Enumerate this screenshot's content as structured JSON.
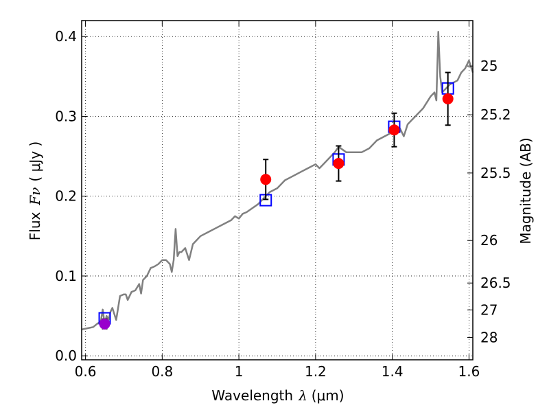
{
  "chart_data": {
    "type": "scatter",
    "xlabel": "Wavelength",
    "xlabel_symbol": "λ",
    "xlabel_unit": "(μm)",
    "ylabel": "Flux",
    "ylabel_symbol": "Fν",
    "ylabel_unit": "( μJy )",
    "right_ylabel": "Magnitude (AB)",
    "xlim": [
      0.59,
      1.61
    ],
    "ylim": [
      -0.005,
      0.42
    ],
    "grid": true,
    "grid_style": "dotted",
    "x_ticks": [
      0.6,
      0.8,
      1.0,
      1.2,
      1.4,
      1.6
    ],
    "x_tick_labels": [
      "0.6",
      "0.8",
      "1",
      "1.2",
      "1.4",
      "1.6"
    ],
    "y_ticks": [
      0.0,
      0.1,
      0.2,
      0.3,
      0.4
    ],
    "y_tick_labels": [
      "0.0",
      "0.1",
      "0.2",
      "0.3",
      "0.4"
    ],
    "right_ticks": [
      {
        "label": "25",
        "mag": 25
      },
      {
        "label": "25.2",
        "mag": 25.2
      },
      {
        "label": "25.5",
        "mag": 25.5
      },
      {
        "label": "26",
        "mag": 26
      },
      {
        "label": "26.5",
        "mag": 26.5
      },
      {
        "label": "27",
        "mag": 27
      },
      {
        "label": "28",
        "mag": 28
      }
    ],
    "series": [
      {
        "type": "line",
        "color": "#808080",
        "x": [
          0.59,
          0.61,
          0.62,
          0.63,
          0.64,
          0.645,
          0.65,
          0.655,
          0.66,
          0.665,
          0.67,
          0.68,
          0.69,
          0.7,
          0.705,
          0.71,
          0.72,
          0.73,
          0.74,
          0.745,
          0.75,
          0.76,
          0.77,
          0.78,
          0.79,
          0.8,
          0.81,
          0.82,
          0.825,
          0.83,
          0.835,
          0.84,
          0.845,
          0.85,
          0.86,
          0.87,
          0.88,
          0.9,
          0.92,
          0.94,
          0.96,
          0.98,
          0.99,
          1.0,
          1.01,
          1.02,
          1.05,
          1.07,
          1.08,
          1.1,
          1.12,
          1.14,
          1.16,
          1.18,
          1.2,
          1.21,
          1.22,
          1.24,
          1.25,
          1.26,
          1.28,
          1.3,
          1.32,
          1.34,
          1.36,
          1.38,
          1.4,
          1.42,
          1.43,
          1.44,
          1.45,
          1.46,
          1.48,
          1.5,
          1.51,
          1.515,
          1.52,
          1.525,
          1.53,
          1.55,
          1.57,
          1.58,
          1.59,
          1.6,
          1.61
        ],
        "y": [
          0.033,
          0.035,
          0.036,
          0.04,
          0.043,
          0.058,
          0.04,
          0.05,
          0.045,
          0.055,
          0.06,
          0.045,
          0.075,
          0.077,
          0.077,
          0.07,
          0.08,
          0.082,
          0.09,
          0.078,
          0.095,
          0.1,
          0.11,
          0.112,
          0.115,
          0.12,
          0.12,
          0.115,
          0.105,
          0.12,
          0.159,
          0.125,
          0.13,
          0.13,
          0.135,
          0.12,
          0.14,
          0.15,
          0.155,
          0.16,
          0.165,
          0.17,
          0.175,
          0.172,
          0.178,
          0.18,
          0.19,
          0.2,
          0.205,
          0.21,
          0.22,
          0.225,
          0.23,
          0.235,
          0.24,
          0.235,
          0.24,
          0.25,
          0.255,
          0.262,
          0.255,
          0.255,
          0.255,
          0.26,
          0.27,
          0.275,
          0.28,
          0.285,
          0.275,
          0.29,
          0.295,
          0.3,
          0.31,
          0.325,
          0.33,
          0.32,
          0.406,
          0.35,
          0.33,
          0.34,
          0.345,
          0.355,
          0.36,
          0.37,
          0.355
        ]
      },
      {
        "type": "square",
        "marker_color": "#0000ff",
        "x": [
          0.65,
          1.07,
          1.26,
          1.405,
          1.545
        ],
        "y": [
          0.047,
          0.195,
          0.246,
          0.287,
          0.335
        ]
      },
      {
        "type": "errorbar",
        "marker_color": "#ff0000",
        "x": [
          0.65,
          1.07,
          1.26,
          1.405,
          1.545
        ],
        "y": [
          0.04,
          0.221,
          0.241,
          0.283,
          0.322
        ],
        "yerr": [
          0.006,
          0.025,
          0.022,
          0.021,
          0.033
        ],
        "highlight": [
          0,
          0
        ]
      }
    ],
    "colors": {
      "spectrum": "#808080",
      "model": "#0000ff",
      "data": "#ff0000",
      "highlight": "#9900cc",
      "grid": "#000000"
    }
  }
}
